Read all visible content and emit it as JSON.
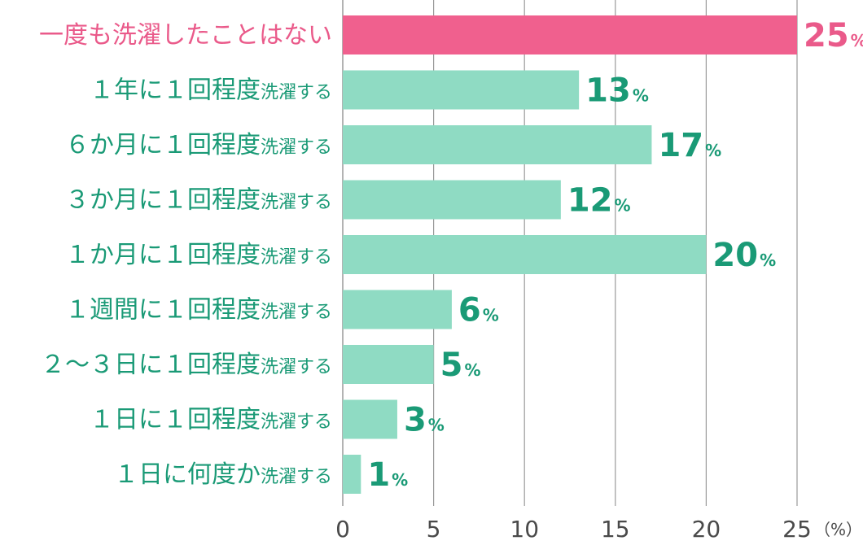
{
  "chart_data": {
    "type": "bar",
    "orientation": "horizontal",
    "categories": [
      {
        "main": "一度も洗濯したことはない",
        "suffix": ""
      },
      {
        "main": "１年に１回程度",
        "suffix": "洗濯する"
      },
      {
        "main": "６か月に１回程度",
        "suffix": "洗濯する"
      },
      {
        "main": "３か月に１回程度",
        "suffix": "洗濯する"
      },
      {
        "main": "１か月に１回程度",
        "suffix": "洗濯する"
      },
      {
        "main": "１週間に１回程度",
        "suffix": "洗濯する"
      },
      {
        "main": "２～３日に１回程度",
        "suffix": "洗濯する"
      },
      {
        "main": "１日に１回程度",
        "suffix": "洗濯する"
      },
      {
        "main": "１日に何度か",
        "suffix": "洗濯する"
      }
    ],
    "values": [
      25,
      13,
      17,
      12,
      20,
      6,
      5,
      3,
      1
    ],
    "value_unit": "%",
    "highlight_index": 0,
    "xlim": [
      0,
      25
    ],
    "xticks": [
      "0",
      "5",
      "10",
      "15",
      "20",
      "25"
    ],
    "x_unit_label": "（%）",
    "grid": "vertical",
    "colors": {
      "bar": "#8fdbc3",
      "highlight_bar": "#f0608e",
      "label": "#1a9a76",
      "highlight_label": "#ea5a8a",
      "grid": "#9a9a9a",
      "axis_text": "#4a4a4a"
    }
  }
}
